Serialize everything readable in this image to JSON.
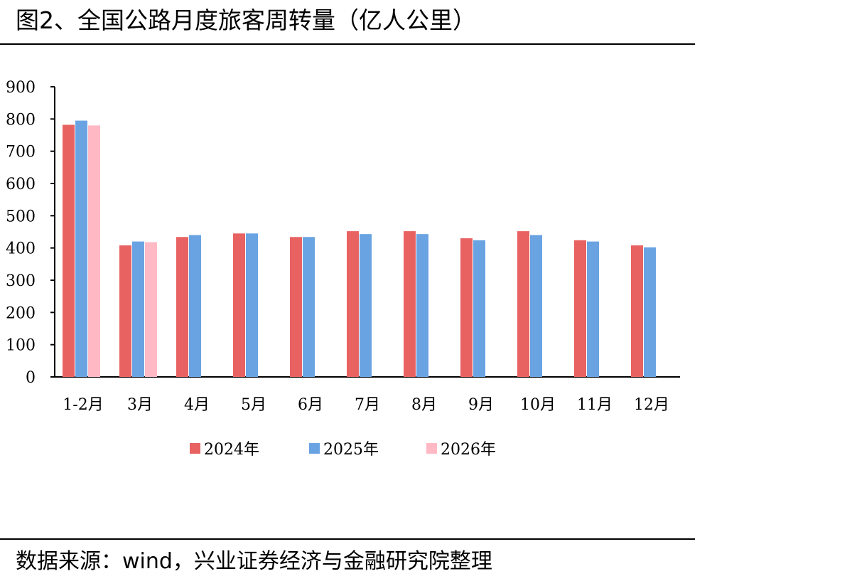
{
  "header": {
    "title": "图2、全国公路月度旅客周转量（亿人公里）"
  },
  "footer": {
    "source": "数据来源：wind，兴业证券经济与金融研究院整理"
  },
  "chart_data": {
    "type": "bar",
    "title": "",
    "xlabel": "",
    "ylabel": "",
    "ylim": [
      0,
      900
    ],
    "yticks": [
      0,
      100,
      200,
      300,
      400,
      500,
      600,
      700,
      800,
      900
    ],
    "grid": false,
    "legend_position": "bottom",
    "categories": [
      "1-2月",
      "3月",
      "4月",
      "5月",
      "6月",
      "7月",
      "8月",
      "9月",
      "10月",
      "11月",
      "12月"
    ],
    "series": [
      {
        "name": "2024年",
        "color": "#E96262",
        "values": [
          782,
          408,
          434,
          445,
          434,
          452,
          452,
          430,
          452,
          424,
          408
        ]
      },
      {
        "name": "2025年",
        "color": "#6AA3E2",
        "values": [
          795,
          420,
          440,
          445,
          434,
          443,
          443,
          424,
          440,
          420,
          402
        ]
      },
      {
        "name": "2026年",
        "color": "#FFB9C5",
        "values": [
          780,
          418,
          null,
          null,
          null,
          null,
          null,
          null,
          null,
          null,
          null
        ]
      }
    ]
  }
}
